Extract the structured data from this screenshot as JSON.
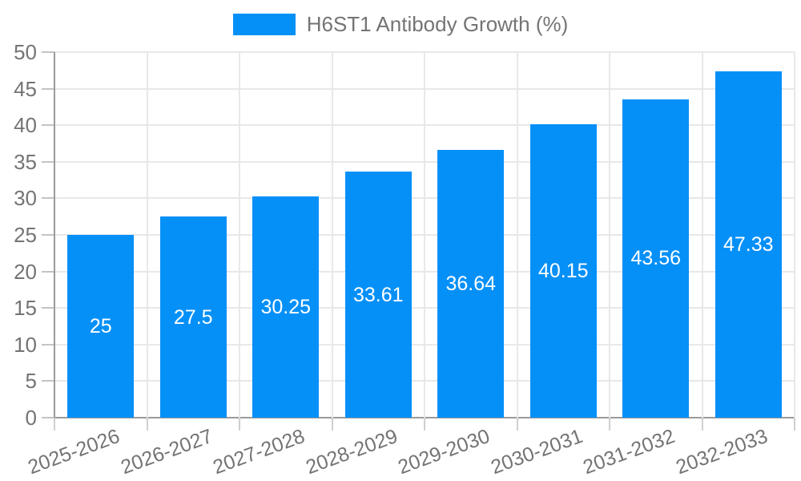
{
  "chart_data": {
    "type": "bar",
    "title": "H6ST1 Antibody Growth (%)",
    "legend": {
      "label": "H6ST1 Antibody Growth (%)",
      "position": "top"
    },
    "categories": [
      "2025-2026",
      "2026-2027",
      "2027-2028",
      "2028-2029",
      "2029-2030",
      "2030-2031",
      "2031-2032",
      "2032-2033"
    ],
    "values": [
      25,
      27.5,
      30.25,
      33.61,
      36.64,
      40.15,
      43.56,
      47.33
    ],
    "value_labels": [
      "25",
      "27.5",
      "30.25",
      "33.61",
      "36.64",
      "40.15",
      "43.56",
      "47.33"
    ],
    "xlabel": "",
    "ylabel": "",
    "ylim": [
      0,
      50
    ],
    "ytick_step": 5,
    "ytick_labels": [
      "0",
      "5",
      "10",
      "15",
      "20",
      "25",
      "30",
      "35",
      "40",
      "45",
      "50"
    ],
    "grid": true,
    "legend_position": "top-center",
    "x_label_rotation_deg": -20,
    "bar_color": "#0590f8",
    "value_label_color": "#ffffff",
    "axis_text_color": "#747474"
  }
}
